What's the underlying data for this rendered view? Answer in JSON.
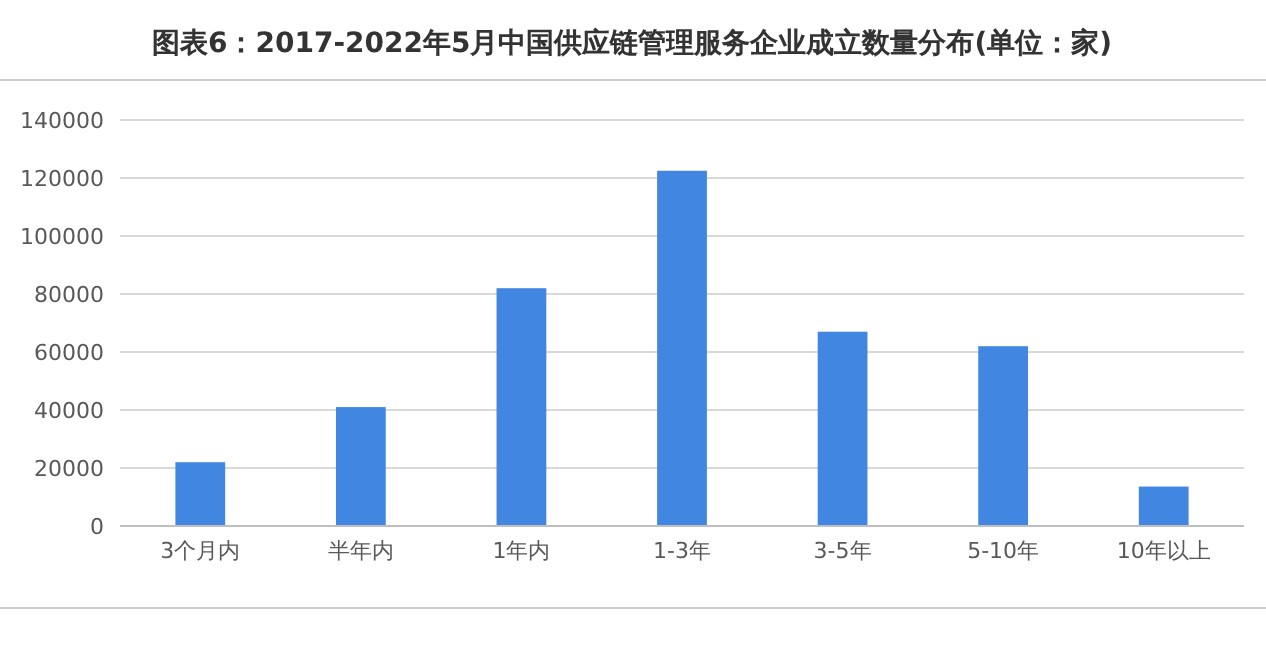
{
  "chart_data": {
    "type": "bar",
    "title": "图表6：2017-2022年5月中国供应链管理服务企业成立数量分布(单位：家)",
    "categories": [
      "3个月内",
      "半年内",
      "1年内",
      "1-3年",
      "3-5年",
      "5-10年",
      "10年以上"
    ],
    "values": [
      22000,
      41000,
      82000,
      122500,
      67000,
      62000,
      13600
    ],
    "color": "#4186e0",
    "ylim": [
      0,
      140000
    ],
    "yticks": [
      0,
      20000,
      40000,
      60000,
      80000,
      100000,
      120000,
      140000
    ],
    "grid": "y"
  }
}
